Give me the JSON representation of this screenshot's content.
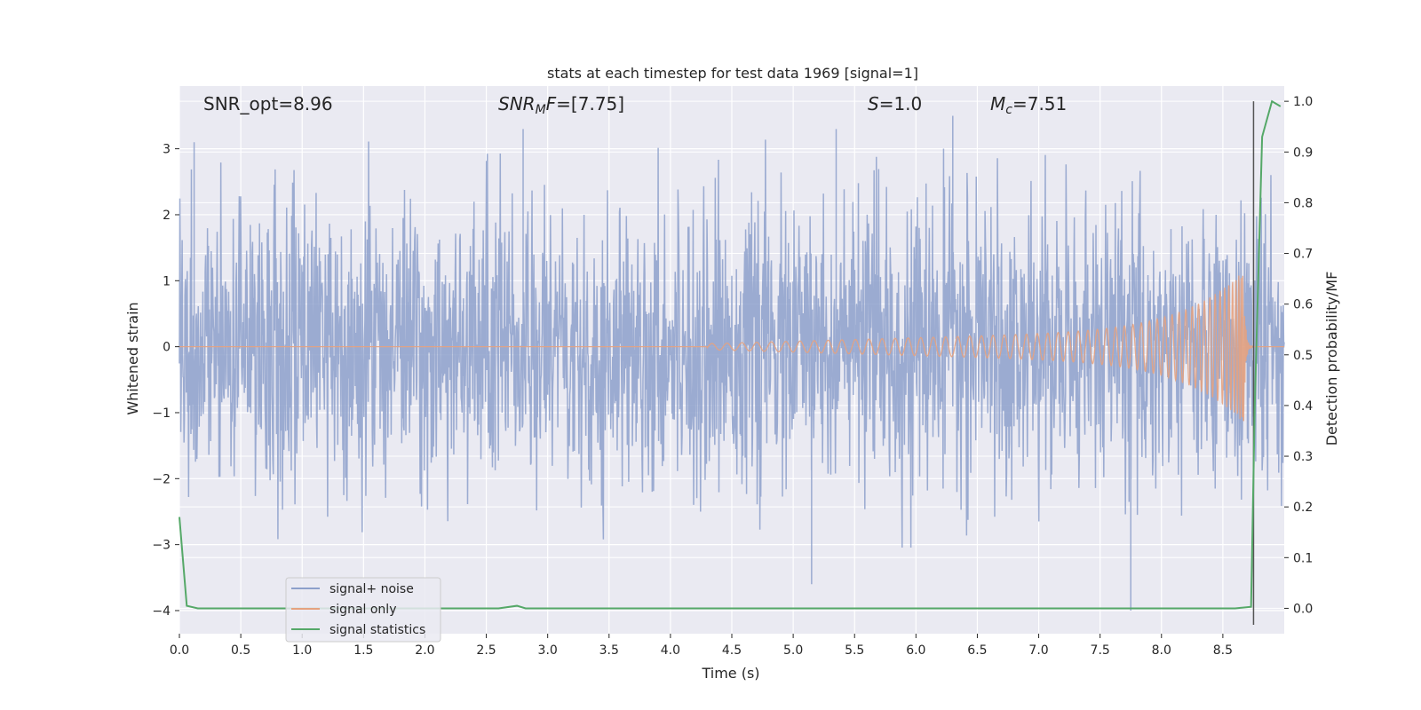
{
  "chart_data": {
    "type": "line",
    "title": "stats at each timestep for test data 1969 [signal=1]",
    "xlabel": "Time (s)",
    "ylabel": "Whitened strain",
    "ylabel_right": "Detection probability/MF",
    "xlim": [
      0.0,
      9.0
    ],
    "ylim": [
      -4.35,
      3.95
    ],
    "ylim_right": [
      -0.05,
      1.03
    ],
    "x_ticks": [
      "0.0",
      "0.5",
      "1.0",
      "1.5",
      "2.0",
      "2.5",
      "3.0",
      "3.5",
      "4.0",
      "4.5",
      "5.0",
      "5.5",
      "6.0",
      "6.5",
      "7.0",
      "7.5",
      "8.0",
      "8.5"
    ],
    "y_ticks": [
      "3",
      "2",
      "1",
      "0",
      "−1",
      "−2",
      "−3",
      "−4"
    ],
    "y_right_ticks": [
      "1.0",
      "0.9",
      "0.8",
      "0.7",
      "0.6",
      "0.5",
      "0.4",
      "0.3",
      "0.2",
      "0.1",
      "0.0"
    ],
    "grid": true,
    "legend_position": "lower-left",
    "annotations": {
      "snr_opt": "SNR_opt=8.96",
      "snr_mf_base": "SNR",
      "snr_mf_sub": "M",
      "snr_mf_tail_italic": "F",
      "snr_mf_value": "=[7.75]",
      "s_italic": "S",
      "s_value": "=1.0",
      "mc_italic": "M",
      "mc_sub": "c",
      "mc_value": "=7.51"
    },
    "series": [
      {
        "name": "signal+ noise",
        "color": "#8da0cb",
        "description": "whitened strain, approx unit-variance noise spanning about -3.9 to 3.5",
        "noise_std": 1.0,
        "noise_peaks": [
          {
            "x": 0.12,
            "y": 3.1
          },
          {
            "x": 2.8,
            "y": 3.3
          },
          {
            "x": 5.15,
            "y": -3.6
          },
          {
            "x": 5.35,
            "y": 3.3
          },
          {
            "x": 6.3,
            "y": 3.5
          },
          {
            "x": 7.75,
            "y": -4.0
          }
        ]
      },
      {
        "name": "signal only",
        "color": "#e5a27f",
        "description": "chirp waveform, amplitude grows from 0 near 4.3 s to peak about 1.15 near 8.67 s",
        "chirp_start": 4.3,
        "merger_time": 8.67,
        "peak_amplitude": 1.15,
        "ringdown_end": 8.75
      },
      {
        "name": "signal statistics",
        "color": "#55a868",
        "x": [
          0.0,
          0.06,
          0.15,
          0.5,
          1.0,
          2.0,
          2.6,
          2.75,
          2.82,
          3.0,
          4.0,
          5.0,
          6.0,
          7.0,
          8.0,
          8.6,
          8.73,
          8.76,
          8.82,
          8.9,
          8.97
        ],
        "y": [
          0.18,
          0.005,
          0.0,
          0.0,
          0.0,
          0.0,
          0.0,
          0.005,
          0.0,
          0.0,
          0.0,
          0.0,
          0.0,
          0.0,
          0.0,
          0.0,
          0.003,
          0.4,
          0.93,
          1.0,
          0.99
        ]
      }
    ],
    "vertical_marker": {
      "x": 8.75,
      "color": "#555555"
    }
  }
}
